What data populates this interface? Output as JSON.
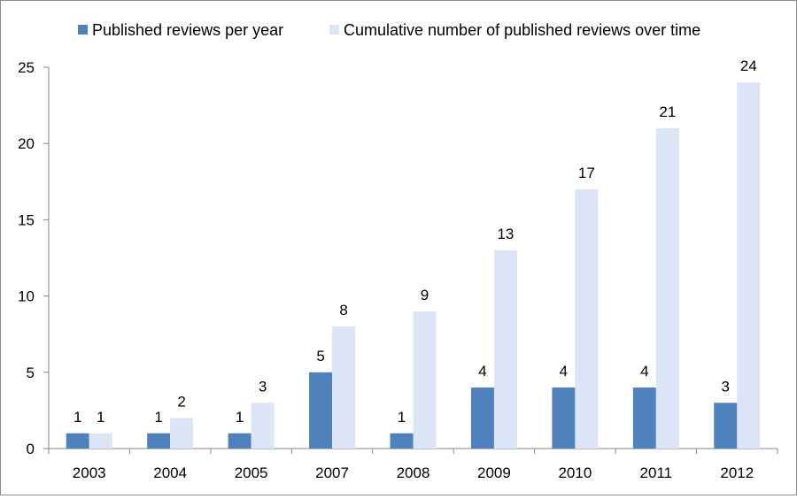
{
  "chart_data": {
    "type": "bar",
    "title": "",
    "xlabel": "",
    "ylabel": "",
    "categories": [
      "2003",
      "2004",
      "2005",
      "2007",
      "2008",
      "2009",
      "2010",
      "2011",
      "2012"
    ],
    "series": [
      {
        "name": "Published reviews per year",
        "color": "#4f81bd",
        "values": [
          1,
          1,
          1,
          5,
          1,
          4,
          4,
          4,
          3
        ]
      },
      {
        "name": "Cumulative number of published reviews over time",
        "color": "#dbe5f5",
        "values": [
          1,
          2,
          3,
          8,
          9,
          13,
          17,
          21,
          24
        ]
      }
    ],
    "ylim": [
      0,
      25
    ],
    "yticks": [
      0,
      5,
      10,
      15,
      20,
      25
    ],
    "grid": false,
    "legend_position": "top-center",
    "data_labels": true
  }
}
